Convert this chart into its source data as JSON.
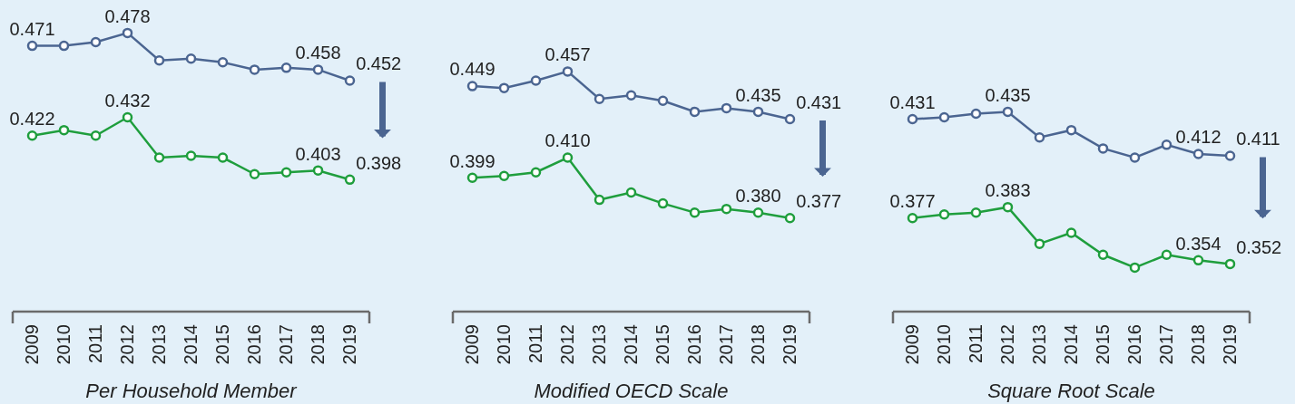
{
  "chart_data": [
    {
      "type": "line",
      "categories": [
        "2009",
        "2010",
        "2011",
        "2012",
        "2013",
        "2014",
        "2015",
        "2016",
        "2017",
        "2018",
        "2019"
      ],
      "xlabel": "Per Household Member",
      "ylim": [
        0.326,
        0.496
      ],
      "tick_labels": "x",
      "marker": "circle",
      "series": [
        {
          "color": "#4b6591",
          "values": [
            0.471,
            0.471,
            0.473,
            0.478,
            0.463,
            0.464,
            0.462,
            0.458,
            0.459,
            0.458,
            0.452
          ],
          "value_labels": [
            "0.471",
            null,
            null,
            "0.478",
            null,
            null,
            null,
            null,
            null,
            "0.458",
            "0.452"
          ]
        },
        {
          "color": "#1f9e3d",
          "values": [
            0.422,
            0.425,
            0.422,
            0.432,
            0.41,
            0.411,
            0.41,
            0.401,
            0.402,
            0.403,
            0.398
          ],
          "value_labels": [
            "0.422",
            null,
            null,
            "0.432",
            null,
            null,
            null,
            null,
            null,
            "0.403",
            "0.398"
          ]
        }
      ]
    },
    {
      "type": "line",
      "categories": [
        "2009",
        "2010",
        "2011",
        "2012",
        "2013",
        "2014",
        "2015",
        "2016",
        "2017",
        "2018",
        "2019"
      ],
      "xlabel": "Modified OECD Scale",
      "ylim": [
        0.326,
        0.496
      ],
      "tick_labels": "x",
      "marker": "circle",
      "series": [
        {
          "color": "#4b6591",
          "values": [
            0.449,
            0.448,
            0.452,
            0.457,
            0.442,
            0.444,
            0.441,
            0.435,
            0.437,
            0.435,
            0.431
          ],
          "value_labels": [
            "0.449",
            null,
            null,
            "0.457",
            null,
            null,
            null,
            null,
            null,
            "0.435",
            "0.431"
          ]
        },
        {
          "color": "#1f9e3d",
          "values": [
            0.399,
            0.4,
            0.402,
            0.41,
            0.387,
            0.391,
            0.385,
            0.38,
            0.382,
            0.38,
            0.377
          ],
          "value_labels": [
            "0.399",
            null,
            null,
            "0.410",
            null,
            null,
            null,
            null,
            null,
            "0.380",
            "0.377"
          ]
        }
      ]
    },
    {
      "type": "line",
      "categories": [
        "2009",
        "2010",
        "2011",
        "2012",
        "2013",
        "2014",
        "2015",
        "2016",
        "2017",
        "2018",
        "2019"
      ],
      "xlabel": "Square Root Scale",
      "ylim": [
        0.326,
        0.496
      ],
      "tick_labels": "x",
      "marker": "circle",
      "series": [
        {
          "color": "#4b6591",
          "values": [
            0.431,
            0.432,
            0.434,
            0.435,
            0.421,
            0.425,
            0.415,
            0.41,
            0.417,
            0.412,
            0.411
          ],
          "value_labels": [
            "0.431",
            null,
            null,
            "0.435",
            null,
            null,
            null,
            null,
            null,
            "0.412",
            "0.411"
          ]
        },
        {
          "color": "#1f9e3d",
          "values": [
            0.377,
            0.379,
            0.38,
            0.383,
            0.363,
            0.369,
            0.357,
            0.35,
            0.357,
            0.354,
            0.352
          ],
          "value_labels": [
            "0.377",
            null,
            null,
            "0.383",
            null,
            null,
            null,
            null,
            null,
            "0.354",
            "0.352"
          ]
        }
      ]
    }
  ]
}
